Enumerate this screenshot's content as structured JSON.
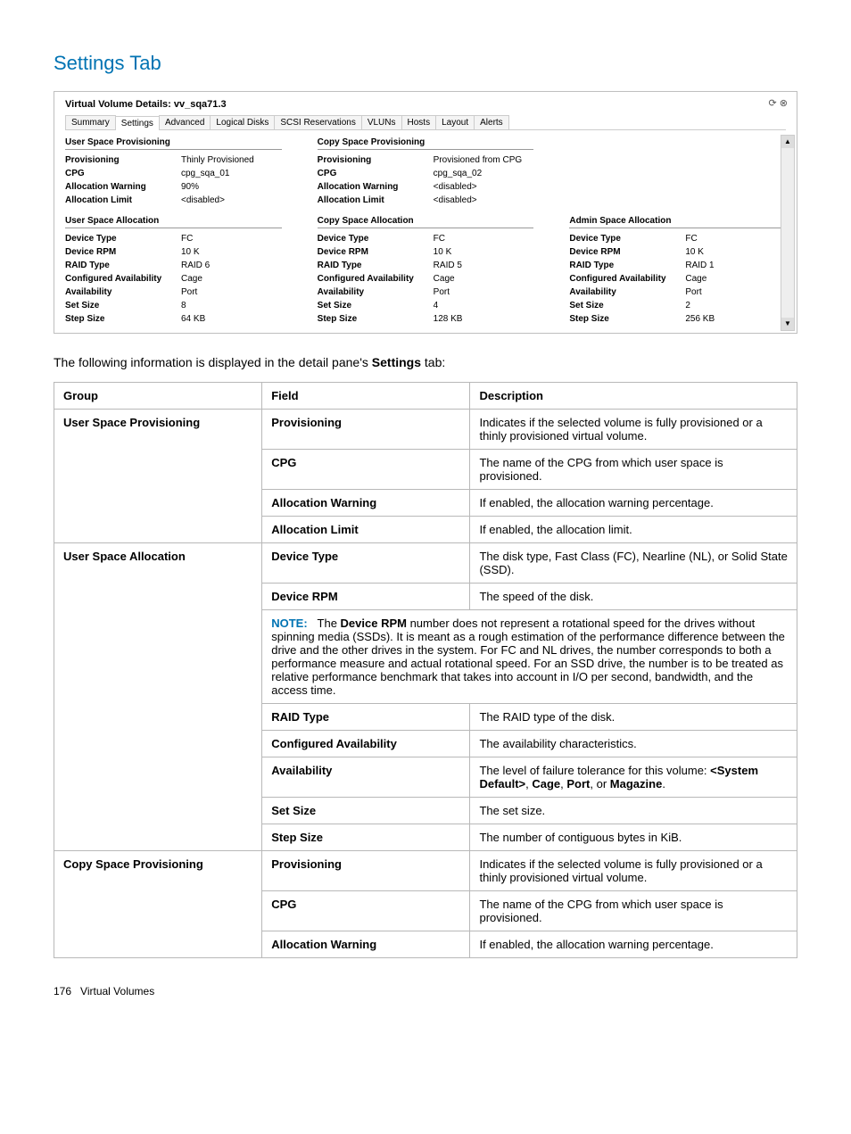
{
  "page_title": "Settings Tab",
  "intro_before": "The following information is displayed in the detail pane's ",
  "intro_bold": "Settings",
  "intro_after": " tab:",
  "footer_page": "176",
  "footer_text": "Virtual Volumes",
  "screenshot": {
    "title": "Virtual Volume Details: vv_sqa71.3",
    "tabs": [
      "Summary",
      "Settings",
      "Advanced",
      "Logical Disks",
      "SCSI Reservations",
      "VLUNs",
      "Hosts",
      "Layout",
      "Alerts"
    ],
    "active_tab_index": 1,
    "top_sections": [
      {
        "heading": "User Space Provisioning",
        "rows": [
          {
            "k": "Provisioning",
            "v": "Thinly Provisioned"
          },
          {
            "k": "CPG",
            "v": "cpg_sqa_01"
          },
          {
            "k": "Allocation Warning",
            "v": "90%"
          },
          {
            "k": "Allocation Limit",
            "v": "<disabled>"
          }
        ]
      },
      {
        "heading": "Copy Space Provisioning",
        "rows": [
          {
            "k": "Provisioning",
            "v": "Provisioned from CPG"
          },
          {
            "k": "CPG",
            "v": "cpg_sqa_02"
          },
          {
            "k": "Allocation Warning",
            "v": "<disabled>"
          },
          {
            "k": "Allocation Limit",
            "v": "<disabled>"
          }
        ]
      }
    ],
    "bottom_sections": [
      {
        "heading": "User Space Allocation",
        "rows": [
          {
            "k": "Device Type",
            "v": "FC"
          },
          {
            "k": "Device RPM",
            "v": "10 K"
          },
          {
            "k": "RAID Type",
            "v": "RAID 6"
          },
          {
            "k": "Configured Availability",
            "v": "Cage"
          },
          {
            "k": "Availability",
            "v": "Port"
          },
          {
            "k": "Set Size",
            "v": "8"
          },
          {
            "k": "Step Size",
            "v": "64 KB"
          }
        ]
      },
      {
        "heading": "Copy Space Allocation",
        "rows": [
          {
            "k": "Device Type",
            "v": "FC"
          },
          {
            "k": "Device RPM",
            "v": "10 K"
          },
          {
            "k": "RAID Type",
            "v": "RAID 5"
          },
          {
            "k": "Configured Availability",
            "v": "Cage"
          },
          {
            "k": "Availability",
            "v": "Port"
          },
          {
            "k": "Set Size",
            "v": "4"
          },
          {
            "k": "Step Size",
            "v": "128 KB"
          }
        ]
      },
      {
        "heading": "Admin Space Allocation",
        "rows": [
          {
            "k": "Device Type",
            "v": "FC"
          },
          {
            "k": "Device RPM",
            "v": "10 K"
          },
          {
            "k": "RAID Type",
            "v": "RAID 1"
          },
          {
            "k": "Configured Availability",
            "v": "Cage"
          },
          {
            "k": "Availability",
            "v": "Port"
          },
          {
            "k": "Set Size",
            "v": "2"
          },
          {
            "k": "Step Size",
            "v": "256 KB"
          }
        ]
      }
    ]
  },
  "table": {
    "headers": [
      "Group",
      "Field",
      "Description"
    ],
    "note_label": "NOTE:",
    "note_text_parts": [
      "The ",
      "Device RPM",
      " number does not represent a rotational speed for the drives without spinning media (SSDs). It is meant as a rough estimation of the performance difference between the drive and the other drives in the system. For FC and NL drives, the number corresponds to both a performance measure and actual rotational speed. For an SSD drive, the number is to be treated as relative performance benchmark that takes into account in I/O per second, bandwidth, and the access time."
    ],
    "groups": [
      {
        "group": "User Space Provisioning",
        "rows": [
          {
            "field": "Provisioning",
            "desc": "Indicates if the selected volume is fully provisioned or a thinly provisioned virtual volume."
          },
          {
            "field": "CPG",
            "desc": "The name of the CPG from which user space is provisioned."
          },
          {
            "field": "Allocation Warning",
            "desc": "If enabled, the allocation warning percentage."
          },
          {
            "field": "Allocation Limit",
            "desc": "If enabled, the allocation limit."
          }
        ]
      },
      {
        "group": "User Space Allocation",
        "note_after_index": 1,
        "rows": [
          {
            "field": "Device Type",
            "desc": "The disk type, Fast Class (FC), Nearline (NL), or Solid State (SSD)."
          },
          {
            "field": "Device RPM",
            "desc": "The speed of the disk."
          },
          {
            "field": "RAID Type",
            "desc": "The RAID type of the disk."
          },
          {
            "field": "Configured Availability",
            "desc": "The availability characteristics."
          },
          {
            "field": "Availability",
            "desc_html": "The level of failure tolerance for this volume: <b>&lt;System Default&gt;</b>, <b>Cage</b>, <b>Port</b>, or <b>Magazine</b>."
          },
          {
            "field": "Set Size",
            "desc": "The set size."
          },
          {
            "field": "Step Size",
            "desc": "The number of contiguous bytes in KiB."
          }
        ]
      },
      {
        "group": "Copy Space Provisioning",
        "rows": [
          {
            "field": "Provisioning",
            "desc": "Indicates if the selected volume is fully provisioned or a thinly provisioned virtual volume."
          },
          {
            "field": "CPG",
            "desc": "The name of the CPG from which user space is provisioned."
          },
          {
            "field": "Allocation Warning",
            "desc": "If enabled, the allocation warning percentage."
          }
        ]
      }
    ]
  }
}
